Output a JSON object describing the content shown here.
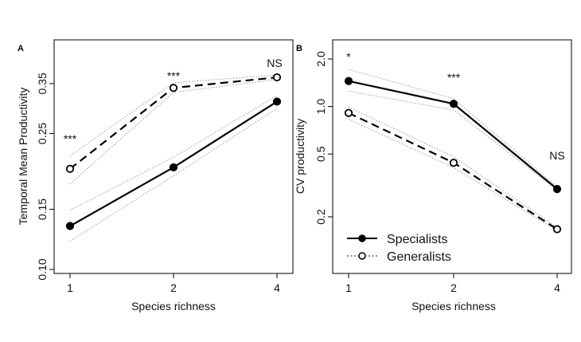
{
  "chart_data": [
    {
      "panel": "A",
      "type": "line",
      "xlabel": "Species richness",
      "ylabel": "Temporal Mean Productivity",
      "yscale": "log",
      "ylim": [
        0.1,
        0.45
      ],
      "yticks": [
        "0.10",
        "0.15",
        "0.25",
        "0.35"
      ],
      "x": [
        "1",
        "2",
        "4"
      ],
      "series": [
        {
          "name": "Specialists",
          "marker": "filled",
          "line": "solid",
          "values": [
            0.134,
            0.199,
            0.31
          ],
          "ci_lower": [
            0.121,
            0.188,
            0.296
          ],
          "ci_upper": [
            0.149,
            0.213,
            0.323
          ]
        },
        {
          "name": "Generalists",
          "marker": "open",
          "line": "dashed",
          "values": [
            0.197,
            0.34,
            0.365
          ],
          "ci_lower": [
            0.178,
            0.33,
            0.36
          ],
          "ci_upper": [
            0.215,
            0.352,
            0.371
          ]
        }
      ],
      "annotations": [
        "***",
        "***",
        "NS"
      ]
    },
    {
      "panel": "B",
      "type": "line",
      "xlabel": "Species richness",
      "ylabel": "CV productivity",
      "yscale": "log",
      "ylim": [
        0.1,
        2.2
      ],
      "yticks": [
        "0.2",
        "0.5",
        "1.0",
        "2.0"
      ],
      "x": [
        "1",
        "2",
        "4"
      ],
      "legend": {
        "position": "bottom-left",
        "entries": [
          "Specialists",
          "Generalists"
        ]
      },
      "series": [
        {
          "name": "Specialists",
          "marker": "filled",
          "line": "solid",
          "values": [
            1.45,
            1.04,
            0.3
          ],
          "ci_lower": [
            1.25,
            0.95,
            0.295
          ],
          "ci_upper": [
            1.72,
            1.12,
            0.31
          ]
        },
        {
          "name": "Generalists",
          "marker": "open",
          "line": "dashed",
          "values": [
            0.91,
            0.44,
            0.167
          ],
          "ci_lower": [
            0.83,
            0.41,
            0.163
          ],
          "ci_upper": [
            0.99,
            0.48,
            0.171
          ]
        }
      ],
      "annotations": [
        "*",
        "***",
        "NS"
      ]
    }
  ]
}
